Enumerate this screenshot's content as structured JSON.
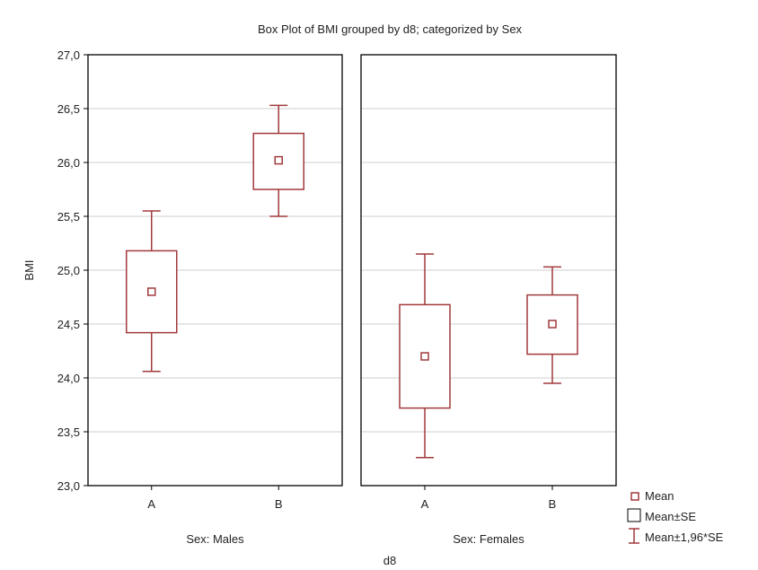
{
  "chart_data": {
    "type": "box",
    "title": "Box Plot of BMI grouped by  d8; categorized by Sex",
    "ylabel": "BMI",
    "xlabel": "d8",
    "ylim": [
      23.0,
      27.0
    ],
    "yticks": [
      23.0,
      23.5,
      24.0,
      24.5,
      25.0,
      25.5,
      26.0,
      26.5,
      27.0
    ],
    "ytick_labels": [
      "23,0",
      "23,5",
      "24,0",
      "24,5",
      "25,0",
      "25,5",
      "26,0",
      "26,5",
      "27,0"
    ],
    "grid": true,
    "categories": [
      "A",
      "B"
    ],
    "panels": [
      {
        "label": "Sex: Males",
        "groups": [
          {
            "category": "A",
            "mean": 24.8,
            "se_low": 24.42,
            "se_high": 25.18,
            "ci_low": 24.06,
            "ci_high": 25.55
          },
          {
            "category": "B",
            "mean": 26.02,
            "se_low": 25.75,
            "se_high": 26.27,
            "ci_low": 25.5,
            "ci_high": 26.53
          }
        ]
      },
      {
        "label": "Sex: Females",
        "groups": [
          {
            "category": "A",
            "mean": 24.2,
            "se_low": 23.72,
            "se_high": 24.68,
            "ci_low": 23.26,
            "ci_high": 25.15
          },
          {
            "category": "B",
            "mean": 24.5,
            "se_low": 24.22,
            "se_high": 24.77,
            "ci_low": 23.95,
            "ci_high": 25.03
          }
        ]
      }
    ],
    "legend": {
      "position": "bottom-right",
      "entries": [
        "Mean",
        "Mean±SE",
        "Mean±1,96*SE"
      ]
    },
    "colors": {
      "box": "#a0393c",
      "grid": "#cfcfcf",
      "frame": "#000000"
    }
  }
}
